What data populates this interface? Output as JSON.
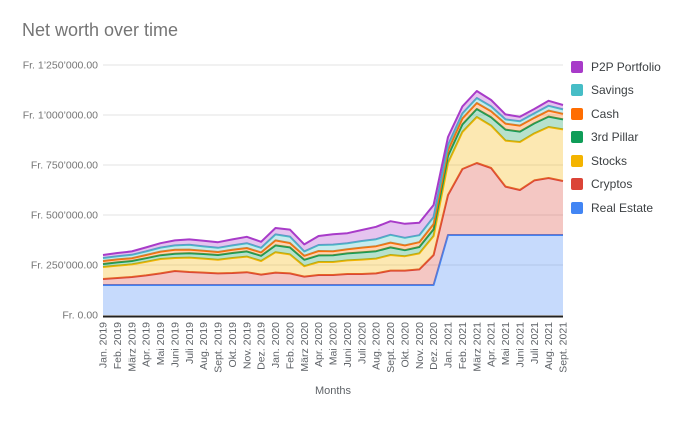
{
  "chart_data": {
    "type": "area",
    "stacked": true,
    "title": "Net worth over time",
    "xlabel": "Months",
    "ylabel": "",
    "grid": true,
    "legend_position": "right",
    "categories": [
      "Jan. 2019",
      "Feb. 2019",
      "März 2019",
      "Apr. 2019",
      "Mai 2019",
      "Juni 2019",
      "Juli 2019",
      "Aug. 2019",
      "Sept. 2019",
      "Okt. 2019",
      "Nov. 2019",
      "Dez. 2019",
      "Jan. 2020",
      "Feb. 2020",
      "März 2020",
      "Apr. 2020",
      "Mai 2020",
      "Juni 2020",
      "Juli 2020",
      "Aug. 2020",
      "Sept. 2020",
      "Okt. 2020",
      "Nov. 2020",
      "Dez. 2020",
      "Jan. 2021",
      "Feb. 2021",
      "März 2021",
      "Apr. 2021",
      "Mai 2021",
      "Juni 2021",
      "Juli 2021",
      "Aug. 2021",
      "Sept. 2021"
    ],
    "y_axis": {
      "min": 0,
      "max": 1250000,
      "tick_step": 250000,
      "tick_labels": [
        "Fr. 0.00",
        "Fr. 250’000.00",
        "Fr. 500’000.00",
        "Fr. 750’000.00",
        "Fr. 1’000’000.00",
        "Fr. 1’250’000.00"
      ]
    },
    "series": [
      {
        "name": "Real Estate",
        "color": "#4285F4",
        "values": [
          150000,
          150000,
          150000,
          150000,
          150000,
          150000,
          150000,
          150000,
          150000,
          150000,
          150000,
          150000,
          150000,
          150000,
          150000,
          150000,
          150000,
          150000,
          150000,
          150000,
          150000,
          150000,
          150000,
          150000,
          400000,
          400000,
          400000,
          400000,
          400000,
          400000,
          400000,
          400000,
          400000
        ]
      },
      {
        "name": "Cryptos",
        "color": "#DB4437",
        "values": [
          30000,
          35000,
          40000,
          48000,
          58000,
          70000,
          65000,
          62000,
          58000,
          60000,
          64000,
          52000,
          62000,
          58000,
          42000,
          50000,
          50000,
          55000,
          55000,
          58000,
          72000,
          72000,
          78000,
          150000,
          200000,
          330000,
          360000,
          335000,
          242000,
          225000,
          273000,
          285000,
          270000
        ]
      },
      {
        "name": "Stocks",
        "color": "#F4B400",
        "values": [
          60000,
          62000,
          63000,
          68000,
          72000,
          65000,
          72000,
          70000,
          68000,
          75000,
          78000,
          68000,
          102000,
          95000,
          52000,
          65000,
          65000,
          68000,
          72000,
          74000,
          78000,
          72000,
          80000,
          95000,
          160000,
          185000,
          230000,
          212000,
          230000,
          240000,
          235000,
          255000,
          258000
        ]
      },
      {
        "name": "3rd Pillar",
        "color": "#0F9D58",
        "values": [
          15000,
          16000,
          17000,
          18000,
          19000,
          21000,
          22000,
          23000,
          24000,
          25000,
          26000,
          26000,
          34000,
          35000,
          32000,
          33000,
          34000,
          35000,
          36000,
          37000,
          38000,
          30000,
          32000,
          34000,
          36000,
          38000,
          40000,
          42000,
          55000,
          52000,
          50000,
          52000,
          50000
        ]
      },
      {
        "name": "Cash",
        "color": "#FF6D01",
        "values": [
          15000,
          15000,
          14000,
          16000,
          18000,
          20000,
          18000,
          16000,
          15000,
          16000,
          17000,
          17000,
          25000,
          22000,
          20000,
          22000,
          20000,
          21000,
          24000,
          25000,
          24000,
          24000,
          24000,
          26000,
          28000,
          30000,
          30000,
          30000,
          30000,
          30000,
          28000,
          30000,
          28000
        ]
      },
      {
        "name": "Savings",
        "color": "#46BDC6",
        "values": [
          15000,
          16000,
          17000,
          18000,
          20000,
          22000,
          24000,
          22000,
          21000,
          22000,
          24000,
          23000,
          30000,
          32000,
          22000,
          30000,
          33000,
          30000,
          33000,
          35000,
          39000,
          38000,
          35000,
          35000,
          26000,
          25000,
          25000,
          24000,
          21000,
          22000,
          22000,
          24000,
          22000
        ]
      },
      {
        "name": "P2P Portfolio",
        "color": "#A83BC9",
        "values": [
          15000,
          16000,
          17000,
          20000,
          22000,
          25000,
          27000,
          28000,
          28000,
          30000,
          32000,
          30000,
          32000,
          35000,
          35000,
          45000,
          52000,
          50000,
          55000,
          62000,
          68000,
          70000,
          62000,
          60000,
          40000,
          35000,
          35000,
          32000,
          25000,
          22000,
          22000,
          25000,
          22000
        ]
      }
    ],
    "legend_order_top_to_bottom": [
      "P2P Portfolio",
      "Savings",
      "Cash",
      "3rd Pillar",
      "Stocks",
      "Cryptos",
      "Real Estate"
    ]
  }
}
